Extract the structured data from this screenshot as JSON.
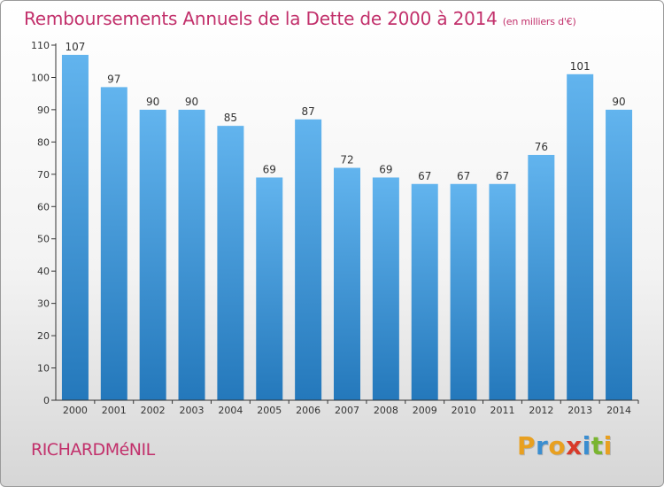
{
  "chart_data": {
    "type": "bar",
    "title": "Remboursements Annuels de la Dette de 2000 à 2014",
    "subtitle": "(en milliers d'€)",
    "categories": [
      "2000",
      "2001",
      "2002",
      "2003",
      "2004",
      "2005",
      "2006",
      "2007",
      "2008",
      "2009",
      "2010",
      "2011",
      "2012",
      "2013",
      "2014"
    ],
    "values": [
      107,
      97,
      90,
      90,
      85,
      69,
      87,
      72,
      69,
      67,
      67,
      67,
      76,
      101,
      90
    ],
    "xlabel": "",
    "ylabel": "",
    "ylim": [
      0,
      110
    ],
    "yticks": [
      0,
      10,
      20,
      30,
      40,
      50,
      60,
      70,
      80,
      90,
      100,
      110
    ],
    "grid": false
  },
  "place_name": "RICHARDMéNIL",
  "logo": {
    "letters": [
      "P",
      "r",
      "o",
      "x",
      "i",
      "t",
      "i"
    ],
    "colors": [
      "#e8a020",
      "#3b8ed0",
      "#e8a020",
      "#d83a2a",
      "#3b8ed0",
      "#7ab530",
      "#e8a020"
    ]
  },
  "colors": {
    "title": "#c2306b",
    "bar_top": "#62b4ee",
    "bar_bottom": "#2478bb",
    "axis": "#333333",
    "label": "#333333"
  }
}
